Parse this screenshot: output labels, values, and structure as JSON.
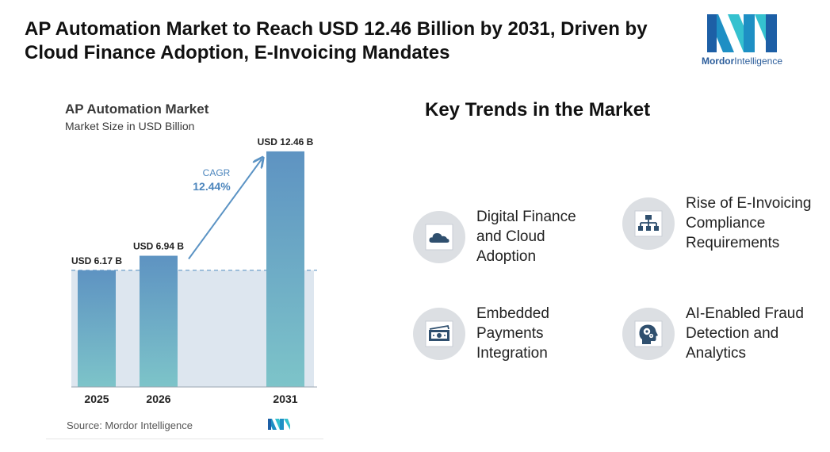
{
  "headline": {
    "line1": "AP Automation Market to Reach USD 12.46 Billion by 2031, Driven by",
    "line2": "Cloud Finance Adoption, E-Invoicing Mandates"
  },
  "logo": {
    "brand": "Mordor",
    "suffix": "Intelligence",
    "colors": [
      "#1e8fc4",
      "#35c1cf",
      "#1d5fa6"
    ]
  },
  "chart_data": {
    "type": "bar",
    "title": "AP Automation Market",
    "subtitle": "Market Size in USD Billion",
    "categories": [
      "2025",
      "2026",
      "2031"
    ],
    "values": [
      6.17,
      6.94,
      12.46
    ],
    "value_labels": [
      "USD 6.17 B",
      "USD 6.94 B",
      "USD 12.46 B"
    ],
    "cagr_label": "CAGR",
    "cagr_value": "12.44%",
    "ylim": [
      0,
      13
    ],
    "grid": false,
    "source": "Source: Mordor Intelligence",
    "colors": {
      "bar_top": "#5e93c2",
      "bar_bottom": "#7dc4c9",
      "band": "#dde6ef",
      "arrow": "#5b93c4",
      "cagr_text": "#4d86bd"
    }
  },
  "trends": {
    "title": "Key Trends in the Market",
    "items": [
      {
        "label": "Digital Finance and Cloud Adoption",
        "icon": "cloud-icon"
      },
      {
        "label": "Rise of E-Invoicing Compliance Requirements",
        "icon": "hierarchy-icon"
      },
      {
        "label": "Embedded Payments Integration",
        "icon": "cash-icon"
      },
      {
        "label": "AI-Enabled Fraud Detection and Analytics",
        "icon": "brain-gear-icon"
      }
    ]
  }
}
